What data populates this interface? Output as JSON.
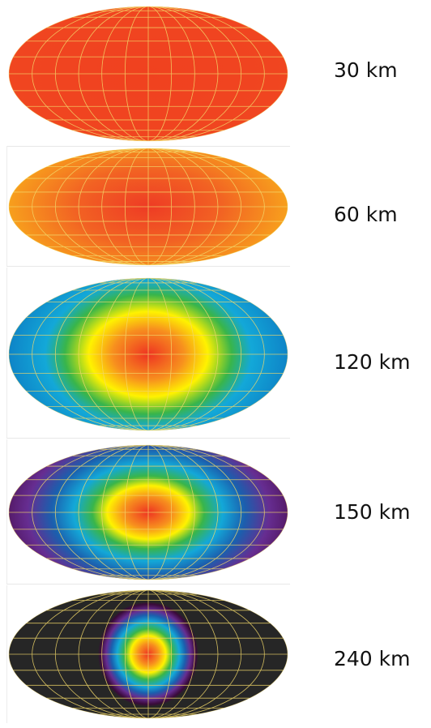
{
  "panels": [
    {
      "depth_label": "30 km",
      "background": "#F14A22",
      "stops": [
        [
          "#F0411F",
          0
        ],
        [
          "#F14A22",
          1
        ]
      ]
    },
    {
      "depth_label": "60 km",
      "background": "#FFF100",
      "stops": [
        [
          "#EE3B24",
          0
        ],
        [
          "#F26223",
          0.3
        ],
        [
          "#F8A51C",
          0.6
        ],
        [
          "#FFE20F",
          0.85
        ],
        [
          "#FFF600",
          1
        ]
      ]
    },
    {
      "depth_label": "120 km",
      "background": "#0A5EA8",
      "stops": [
        [
          "#EE3322",
          0
        ],
        [
          "#F7901E",
          0.18
        ],
        [
          "#FFF200",
          0.3
        ],
        [
          "#39B54A",
          0.42
        ],
        [
          "#13A8D8",
          0.52
        ],
        [
          "#0D7BC3",
          0.75
        ],
        [
          "#0A5EA8",
          1
        ]
      ]
    },
    {
      "depth_label": "150 km",
      "background": "#35001A",
      "stops": [
        [
          "#EE3322",
          0
        ],
        [
          "#F7901E",
          0.13
        ],
        [
          "#FFF200",
          0.22
        ],
        [
          "#39B54A",
          0.3
        ],
        [
          "#13A8D8",
          0.4
        ],
        [
          "#1B5FAE",
          0.52
        ],
        [
          "#662D91",
          0.65
        ],
        [
          "#4A0E4E",
          0.82
        ],
        [
          "#30001A",
          1
        ]
      ]
    },
    {
      "depth_label": "240 km",
      "background": "#262626",
      "stops": [
        [
          "#EE3322",
          0
        ],
        [
          "#F7901E",
          0.2
        ],
        [
          "#FFF200",
          0.35
        ],
        [
          "#39B54A",
          0.48
        ],
        [
          "#13A8D8",
          0.62
        ],
        [
          "#1B5FAE",
          0.74
        ],
        [
          "#662D91",
          0.84
        ],
        [
          "#3A0A3A",
          0.95
        ],
        [
          "#262626",
          1
        ]
      ]
    }
  ],
  "grid_color": "#F2D96A"
}
